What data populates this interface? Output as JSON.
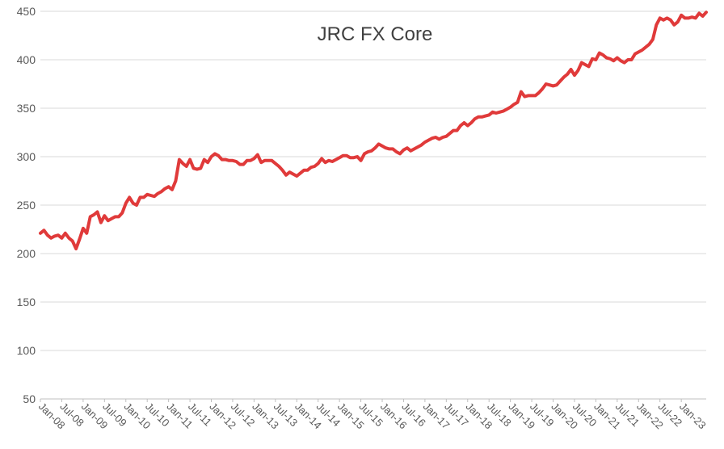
{
  "chart_data": {
    "type": "line",
    "title": "JRC FX Core",
    "xlabel": "",
    "ylabel": "",
    "ylim": [
      50,
      450
    ],
    "yticks": [
      50,
      100,
      150,
      200,
      250,
      300,
      350,
      400,
      450
    ],
    "grid": true,
    "legend": "none",
    "xtick_labels": [
      "Jan-08",
      "Jul-08",
      "Jan-09",
      "Jul-09",
      "Jan-10",
      "Jul-10",
      "Jan-11",
      "Jul-11",
      "Jan-12",
      "Jul-12",
      "Jan-13",
      "Jul-13",
      "Jan-14",
      "Jul-14",
      "Jan-15",
      "Jul-15",
      "Jan-16",
      "Jul-16",
      "Jan-17",
      "Jul-17",
      "Jan-18",
      "Jul-18",
      "Jan-19",
      "Jul-19",
      "Jan-20",
      "Jul-20",
      "Jan-21",
      "Jul-21",
      "Jan-22",
      "Jul-22",
      "Jan-23"
    ],
    "line_color": "#e03a3a",
    "series": [
      {
        "x_start": "2008-01",
        "frequency": "monthly",
        "values": [
          221,
          224,
          219,
          216,
          218,
          219,
          216,
          221,
          216,
          213,
          205,
          215,
          226,
          221,
          238,
          240,
          243,
          232,
          239,
          234,
          236,
          238,
          238,
          242,
          252,
          258,
          252,
          250,
          258,
          258,
          261,
          260,
          259,
          262,
          264,
          267,
          269,
          266,
          275,
          297,
          293,
          290,
          297,
          288,
          287,
          288,
          297,
          294,
          300,
          303,
          301,
          297,
          297,
          296,
          296,
          295,
          292,
          292,
          296,
          296,
          298,
          302,
          294,
          296,
          296,
          296,
          293,
          290,
          286,
          281,
          284,
          282,
          280,
          283,
          286,
          286,
          289,
          290,
          293,
          298,
          294,
          296,
          295,
          297,
          299,
          301,
          301,
          299,
          299,
          300,
          296,
          303,
          305,
          306,
          309,
          313,
          311,
          309,
          308,
          308,
          305,
          303,
          307,
          309,
          306,
          308,
          310,
          312,
          315,
          317,
          319,
          320,
          318,
          320,
          321,
          324,
          327,
          327,
          332,
          335,
          332,
          335,
          339,
          341,
          341,
          342,
          343,
          346,
          345,
          346,
          347,
          349,
          351,
          354,
          356,
          367,
          362,
          363,
          363,
          363,
          366,
          370,
          375,
          374,
          373,
          374,
          378,
          382,
          385,
          390,
          384,
          389,
          397,
          395,
          393,
          401,
          400,
          407,
          405,
          402,
          401,
          399,
          402,
          399,
          397,
          400,
          400,
          406,
          408,
          410,
          413,
          416,
          421,
          436,
          443,
          441,
          443,
          441,
          436,
          439,
          446,
          443,
          443,
          444,
          443,
          448,
          445,
          449
        ]
      }
    ]
  }
}
